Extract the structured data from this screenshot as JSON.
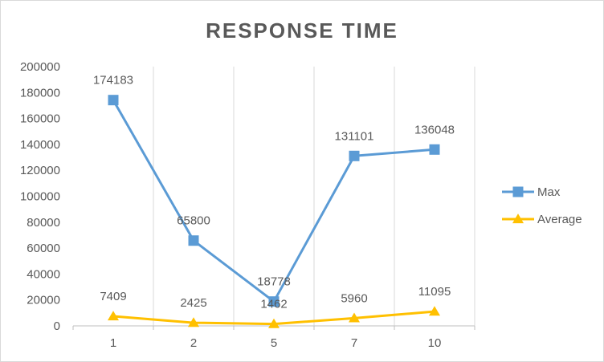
{
  "chart_data": {
    "type": "line",
    "title": "RESPONSE TIME",
    "xlabel": "",
    "ylabel": "",
    "categories": [
      "1",
      "2",
      "5",
      "7",
      "10"
    ],
    "ylim": [
      0,
      200000
    ],
    "yticks": [
      0,
      20000,
      40000,
      60000,
      80000,
      100000,
      120000,
      140000,
      160000,
      180000,
      200000
    ],
    "grid": "vertical",
    "legend": "right",
    "series": [
      {
        "name": "Max",
        "values": [
          174183,
          65800,
          18778,
          131101,
          136048
        ],
        "color": "#5b9bd5",
        "marker": "square"
      },
      {
        "name": "Average",
        "values": [
          7409,
          2425,
          1462,
          5960,
          11095
        ],
        "color": "#ffc000",
        "marker": "triangle"
      }
    ]
  }
}
